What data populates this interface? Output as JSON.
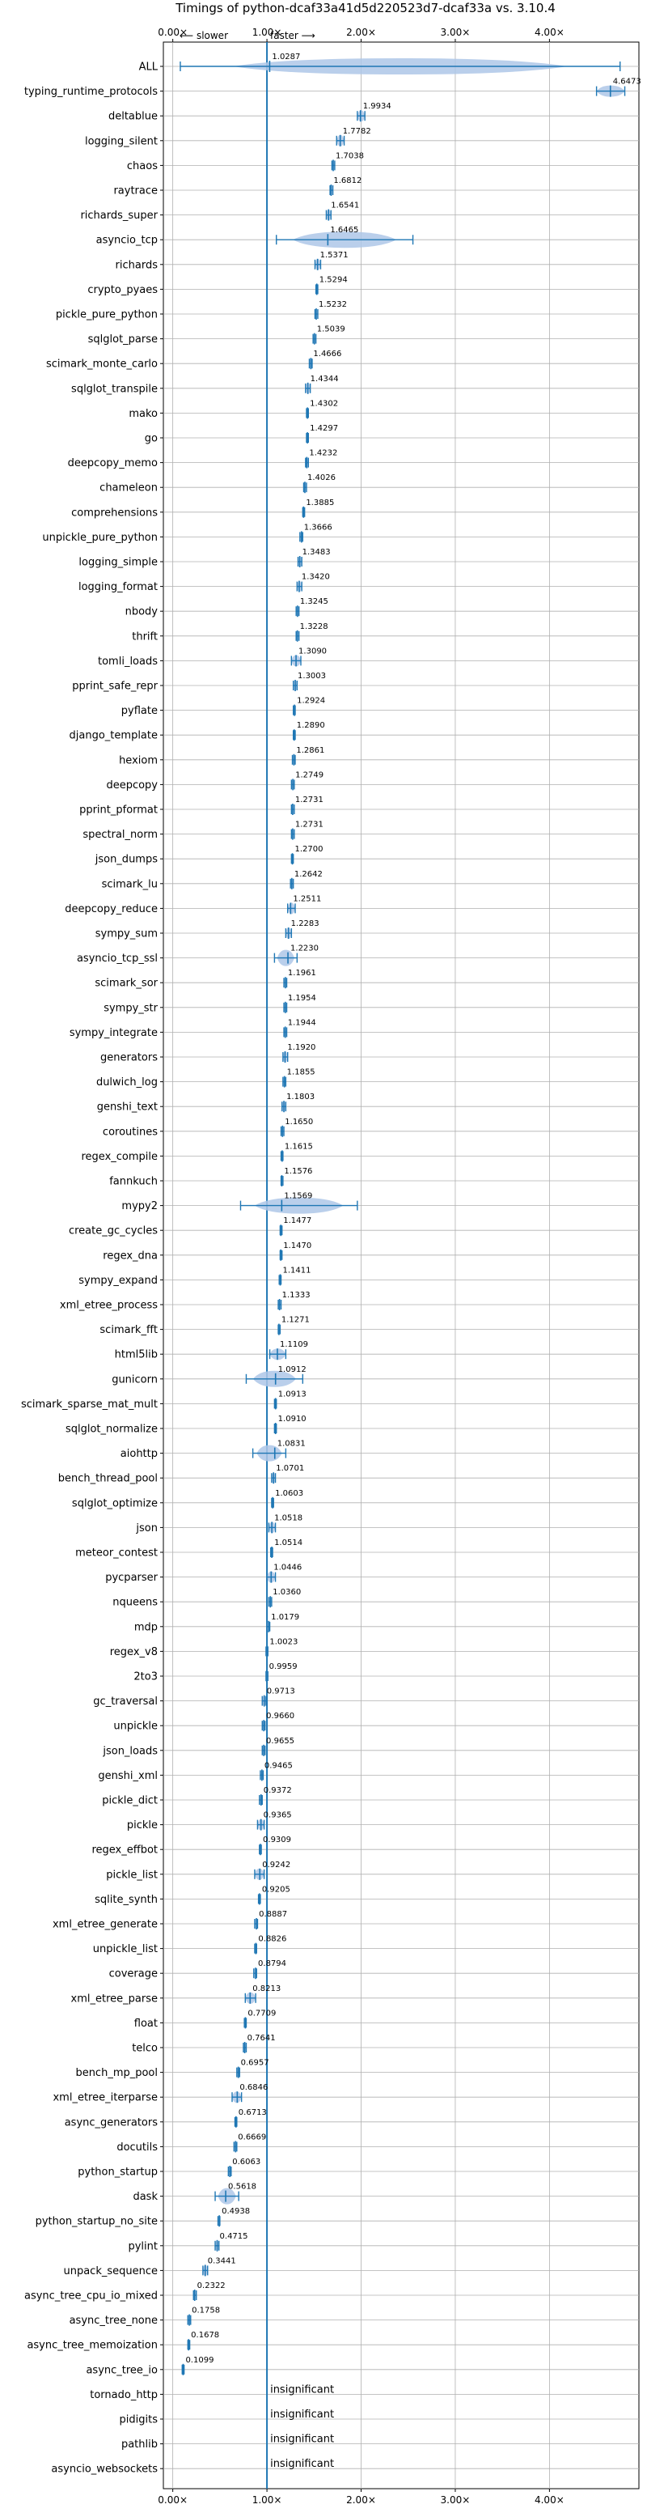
{
  "chart_data": {
    "type": "violin",
    "title": "Timings of python-dcaf33a41d5d220523d7-dcaf33a vs. 3.10.4",
    "direction_labels": {
      "slower": "⟵ slower",
      "faster": "faster ⟶"
    },
    "xlim": [
      -0.1,
      4.95
    ],
    "xticks": [
      0,
      1,
      2,
      3,
      4
    ],
    "xtick_labels": [
      "0.00×",
      "1.00×",
      "2.00×",
      "3.00×",
      "4.00×"
    ],
    "reference_line": 1.0,
    "grid": true,
    "insignificant_text": "insignificant",
    "categories": [
      "ALL",
      "typing_runtime_protocols",
      "deltablue",
      "logging_silent",
      "chaos",
      "raytrace",
      "richards_super",
      "asyncio_tcp",
      "richards",
      "crypto_pyaes",
      "pickle_pure_python",
      "sqlglot_parse",
      "scimark_monte_carlo",
      "sqlglot_transpile",
      "mako",
      "go",
      "deepcopy_memo",
      "chameleon",
      "comprehensions",
      "unpickle_pure_python",
      "logging_simple",
      "logging_format",
      "nbody",
      "thrift",
      "tomli_loads",
      "pprint_safe_repr",
      "pyflate",
      "django_template",
      "hexiom",
      "deepcopy",
      "pprint_pformat",
      "spectral_norm",
      "json_dumps",
      "scimark_lu",
      "deepcopy_reduce",
      "sympy_sum",
      "asyncio_tcp_ssl",
      "scimark_sor",
      "sympy_str",
      "sympy_integrate",
      "generators",
      "dulwich_log",
      "genshi_text",
      "coroutines",
      "regex_compile",
      "fannkuch",
      "mypy2",
      "create_gc_cycles",
      "regex_dna",
      "sympy_expand",
      "xml_etree_process",
      "scimark_fft",
      "html5lib",
      "gunicorn",
      "scimark_sparse_mat_mult",
      "sqlglot_normalize",
      "aiohttp",
      "bench_thread_pool",
      "sqlglot_optimize",
      "json",
      "meteor_contest",
      "pycparser",
      "nqueens",
      "mdp",
      "regex_v8",
      "2to3",
      "gc_traversal",
      "unpickle",
      "json_loads",
      "genshi_xml",
      "pickle_dict",
      "pickle",
      "regex_effbot",
      "pickle_list",
      "sqlite_synth",
      "xml_etree_generate",
      "unpickle_list",
      "coverage",
      "xml_etree_parse",
      "float",
      "telco",
      "bench_mp_pool",
      "xml_etree_iterparse",
      "async_generators",
      "docutils",
      "python_startup",
      "dask",
      "python_startup_no_site",
      "pylint",
      "unpack_sequence",
      "async_tree_cpu_io_mixed",
      "async_tree_none",
      "async_tree_memoization",
      "async_tree_io",
      "tornado_http",
      "pidigits",
      "pathlib",
      "asyncio_websockets"
    ],
    "values": [
      1.0287,
      4.6473,
      1.9934,
      1.7782,
      1.7038,
      1.6812,
      1.6541,
      1.6465,
      1.5371,
      1.5294,
      1.5232,
      1.5039,
      1.4666,
      1.4344,
      1.4302,
      1.4297,
      1.4232,
      1.4026,
      1.3885,
      1.3666,
      1.3483,
      1.342,
      1.3245,
      1.3228,
      1.309,
      1.3003,
      1.2924,
      1.289,
      1.2861,
      1.2749,
      1.2731,
      1.2731,
      1.27,
      1.2642,
      1.2511,
      1.2283,
      1.223,
      1.1961,
      1.1954,
      1.1944,
      1.192,
      1.1855,
      1.1803,
      1.165,
      1.1615,
      1.1576,
      1.1569,
      1.1477,
      1.147,
      1.1411,
      1.1333,
      1.1271,
      1.1109,
      1.0912,
      1.0913,
      1.091,
      1.0831,
      1.0701,
      1.0603,
      1.0518,
      1.0514,
      1.0446,
      1.036,
      1.0179,
      1.0023,
      0.9959,
      0.9713,
      0.966,
      0.9655,
      0.9465,
      0.9372,
      0.9365,
      0.9309,
      0.9242,
      0.9205,
      0.8887,
      0.8826,
      0.8794,
      0.8213,
      0.7709,
      0.7641,
      0.6957,
      0.6846,
      0.6713,
      0.6669,
      0.6063,
      0.5618,
      0.4938,
      0.4715,
      0.3441,
      0.2322,
      0.1758,
      0.1678,
      0.1099,
      null,
      null,
      null,
      null
    ],
    "ranges": [
      [
        0.08,
        4.75
      ],
      [
        4.5,
        4.8
      ],
      [
        1.96,
        2.04
      ],
      [
        1.74,
        1.82
      ],
      [
        1.69,
        1.72
      ],
      [
        1.67,
        1.7
      ],
      [
        1.63,
        1.68
      ],
      [
        1.1,
        2.55
      ],
      [
        1.51,
        1.57
      ],
      [
        1.52,
        1.54
      ],
      [
        1.51,
        1.54
      ],
      [
        1.49,
        1.52
      ],
      [
        1.45,
        1.48
      ],
      [
        1.41,
        1.46
      ],
      [
        1.42,
        1.44
      ],
      [
        1.42,
        1.44
      ],
      [
        1.41,
        1.44
      ],
      [
        1.39,
        1.42
      ],
      [
        1.38,
        1.4
      ],
      [
        1.35,
        1.38
      ],
      [
        1.33,
        1.37
      ],
      [
        1.32,
        1.37
      ],
      [
        1.31,
        1.34
      ],
      [
        1.31,
        1.34
      ],
      [
        1.26,
        1.36
      ],
      [
        1.28,
        1.32
      ],
      [
        1.28,
        1.3
      ],
      [
        1.28,
        1.3
      ],
      [
        1.27,
        1.3
      ],
      [
        1.26,
        1.29
      ],
      [
        1.26,
        1.29
      ],
      [
        1.26,
        1.29
      ],
      [
        1.26,
        1.28
      ],
      [
        1.25,
        1.28
      ],
      [
        1.22,
        1.3
      ],
      [
        1.2,
        1.26
      ],
      [
        1.08,
        1.32
      ],
      [
        1.18,
        1.21
      ],
      [
        1.18,
        1.21
      ],
      [
        1.18,
        1.21
      ],
      [
        1.17,
        1.22
      ],
      [
        1.17,
        1.2
      ],
      [
        1.16,
        1.2
      ],
      [
        1.15,
        1.18
      ],
      [
        1.15,
        1.17
      ],
      [
        1.15,
        1.17
      ],
      [
        0.72,
        1.96
      ],
      [
        1.14,
        1.16
      ],
      [
        1.14,
        1.16
      ],
      [
        1.13,
        1.15
      ],
      [
        1.12,
        1.15
      ],
      [
        1.12,
        1.14
      ],
      [
        1.03,
        1.2
      ],
      [
        0.78,
        1.38
      ],
      [
        1.08,
        1.1
      ],
      [
        1.08,
        1.1
      ],
      [
        0.85,
        1.2
      ],
      [
        1.05,
        1.09
      ],
      [
        1.05,
        1.07
      ],
      [
        1.02,
        1.09
      ],
      [
        1.04,
        1.06
      ],
      [
        1.0,
        1.09
      ],
      [
        1.02,
        1.05
      ],
      [
        1.0,
        1.03
      ],
      [
        0.99,
        1.01
      ],
      [
        0.99,
        1.01
      ],
      [
        0.95,
        0.99
      ],
      [
        0.95,
        0.98
      ],
      [
        0.95,
        0.98
      ],
      [
        0.93,
        0.96
      ],
      [
        0.92,
        0.95
      ],
      [
        0.9,
        0.97
      ],
      [
        0.92,
        0.94
      ],
      [
        0.87,
        0.97
      ],
      [
        0.91,
        0.93
      ],
      [
        0.87,
        0.9
      ],
      [
        0.87,
        0.89
      ],
      [
        0.86,
        0.89
      ],
      [
        0.77,
        0.88
      ],
      [
        0.76,
        0.78
      ],
      [
        0.75,
        0.78
      ],
      [
        0.68,
        0.71
      ],
      [
        0.63,
        0.73
      ],
      [
        0.66,
        0.68
      ],
      [
        0.65,
        0.68
      ],
      [
        0.59,
        0.62
      ],
      [
        0.45,
        0.7
      ],
      [
        0.48,
        0.5
      ],
      [
        0.45,
        0.49
      ],
      [
        0.32,
        0.37
      ],
      [
        0.22,
        0.25
      ],
      [
        0.16,
        0.19
      ],
      [
        0.16,
        0.18
      ],
      [
        0.1,
        0.12
      ],
      null,
      null,
      null,
      null
    ],
    "wide_violins": [
      "ALL",
      "asyncio_tcp",
      "mypy2",
      "dask",
      "gunicorn",
      "aiohttp",
      "asyncio_tcp_ssl"
    ]
  }
}
